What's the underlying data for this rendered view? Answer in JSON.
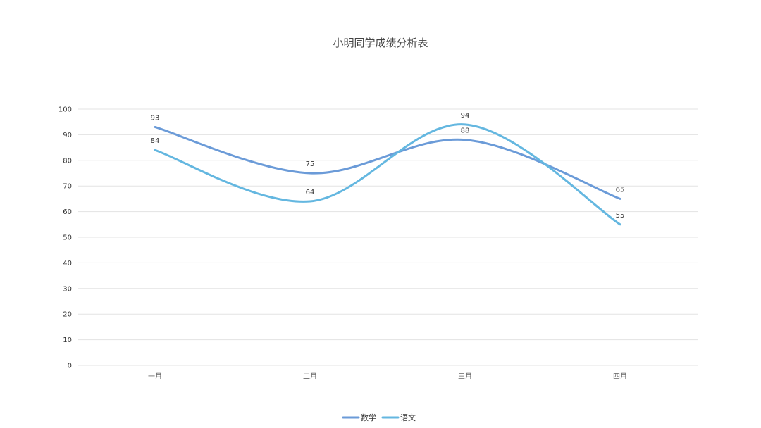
{
  "chart_data": {
    "type": "line",
    "title": "小明同学成绩分析表",
    "categories": [
      "一月",
      "二月",
      "三月",
      "四月"
    ],
    "series": [
      {
        "name": "数学",
        "values": [
          93,
          75,
          88,
          65
        ],
        "color": "#6b9bd8"
      },
      {
        "name": "语文",
        "values": [
          84,
          64,
          94,
          55
        ],
        "color": "#64b7e0"
      }
    ],
    "ylim": [
      0,
      100
    ],
    "yticks": [
      0,
      10,
      20,
      30,
      40,
      50,
      60,
      70,
      80,
      90,
      100
    ],
    "grid": true,
    "smooth": true,
    "legend_position": "bottom-center",
    "data_labels": true
  }
}
